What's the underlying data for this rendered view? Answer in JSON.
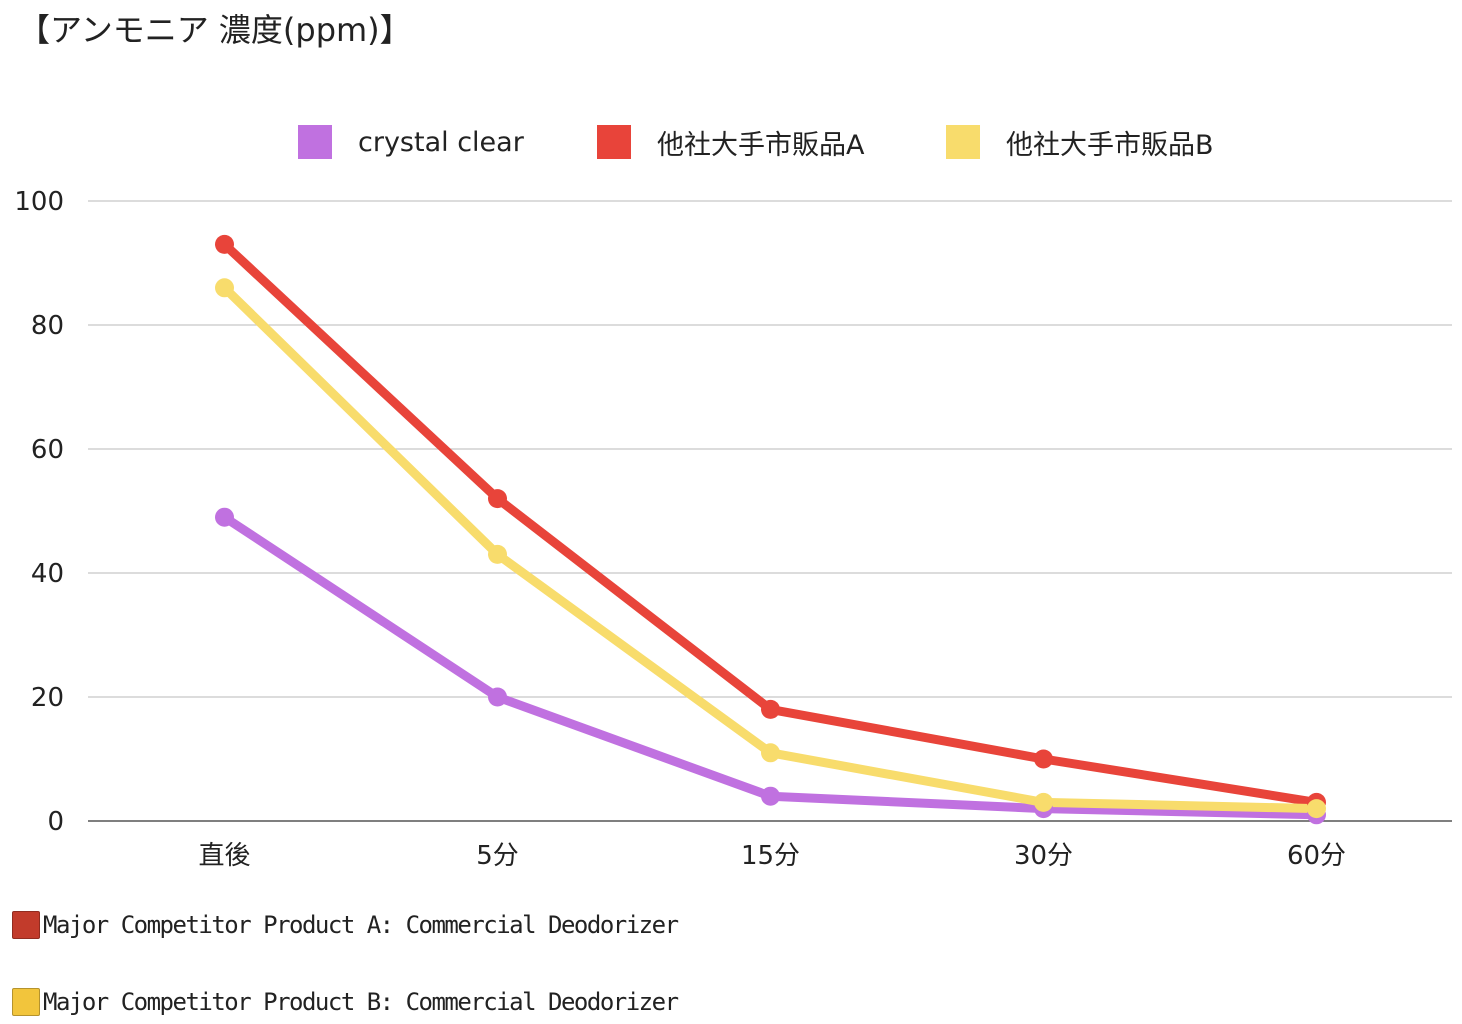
{
  "chart_data": {
    "type": "line",
    "title": "【アンモニア 濃度(ppm)】",
    "categories": [
      "直後",
      "5分",
      "15分",
      "30分",
      "60分"
    ],
    "series": [
      {
        "name": "crystal clear",
        "color": "#c071e0",
        "values": [
          49,
          20,
          4,
          2,
          1
        ]
      },
      {
        "name": "他社大手市販品A",
        "color": "#e8443a",
        "values": [
          93,
          52,
          18,
          10,
          3
        ]
      },
      {
        "name": "他社大手市販品B",
        "color": "#f8dc6c",
        "values": [
          86,
          43,
          11,
          3,
          2
        ]
      }
    ],
    "ylim": [
      0,
      100
    ],
    "yticks": [
      0,
      20,
      40,
      60,
      80,
      100
    ],
    "grid": true,
    "legend_position": "top"
  },
  "notes": [
    {
      "color": "#c23b2b",
      "text": "Major Competitor Product A: Commercial Deodorizer"
    },
    {
      "color": "#f2c53c",
      "text": "Major Competitor Product B: Commercial Deodorizer"
    }
  ]
}
